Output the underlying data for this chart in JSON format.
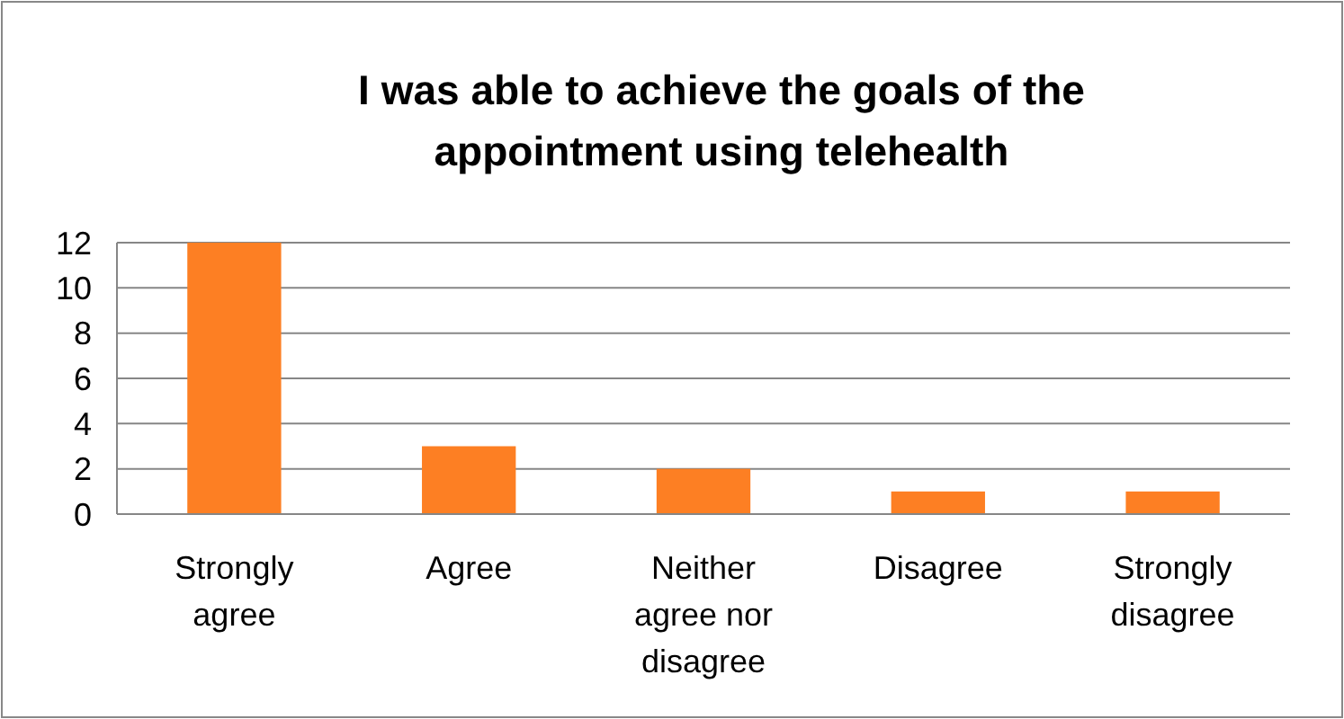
{
  "chart_data": {
    "type": "bar",
    "title": "I was able to achieve the goals of the appointment using telehealth",
    "categories": [
      "Strongly agree",
      "Agree",
      "Neither agree nor disagree",
      "Disagree",
      "Strongly disagree"
    ],
    "values": [
      12,
      3,
      2,
      1,
      1
    ],
    "color": "#fd7f23",
    "ylim": [
      0,
      12
    ],
    "yticks": [
      0,
      2,
      4,
      6,
      8,
      10,
      12
    ],
    "grid": "y"
  }
}
